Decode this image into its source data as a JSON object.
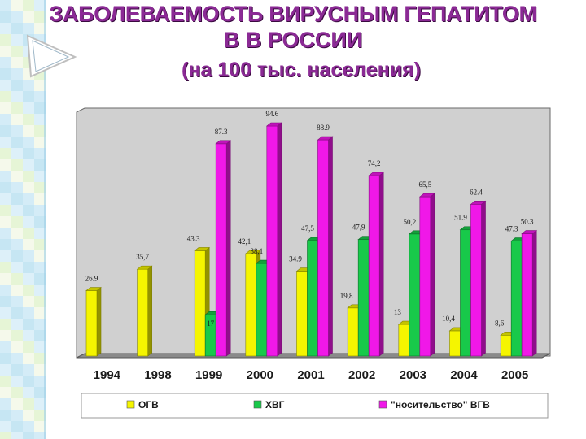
{
  "title": {
    "line1": "ЗАБОЛЕВАЕМОСТЬ ВИРУСНЫМ ГЕПАТИТОМ",
    "line2": "В В РОССИИ",
    "line3": "(на 100 тыс. населения)"
  },
  "colors": {
    "title": "#8B2A95",
    "background_mosaic": [
      "#c9e7f5",
      "#e0f2cc",
      "#b8e0f0",
      "#f2f8e6",
      "#d4ecf8"
    ]
  },
  "chart_data": {
    "type": "bar",
    "categories": [
      "1994",
      "1998",
      "1999",
      "2000",
      "2001",
      "2002",
      "2003",
      "2004",
      "2005"
    ],
    "series": [
      {
        "name": "ОГВ",
        "color": "#f5f500",
        "values": [
          26.9,
          35.7,
          43.3,
          42.1,
          34.9,
          19.8,
          13,
          10.4,
          8.6
        ],
        "labels": [
          "26.9",
          "35,7",
          "43.3",
          "42,1",
          "34.9",
          "19,8",
          "13",
          "10,4",
          "8,6"
        ]
      },
      {
        "name": "ХВГ",
        "color": "#18c94a",
        "values": [
          null,
          null,
          17,
          38.1,
          47.5,
          47.9,
          50.2,
          51.9,
          47.3
        ],
        "labels": [
          "",
          "",
          "17",
          "38,1",
          "47,5",
          "47,9",
          "50,2",
          "51.9",
          "47.3"
        ]
      },
      {
        "name": "\"носительство\" ВГВ",
        "color": "#f018e8",
        "values": [
          null,
          null,
          87.3,
          94.6,
          88.9,
          74.2,
          65.5,
          62.4,
          50.3
        ],
        "labels": [
          "",
          "",
          "87.3",
          "94.6",
          "88.9",
          "74,2",
          "65,5",
          "62.4",
          "50.3"
        ]
      }
    ],
    "ylim": [
      0,
      100
    ],
    "legend_position": "bottom",
    "grid": false
  }
}
